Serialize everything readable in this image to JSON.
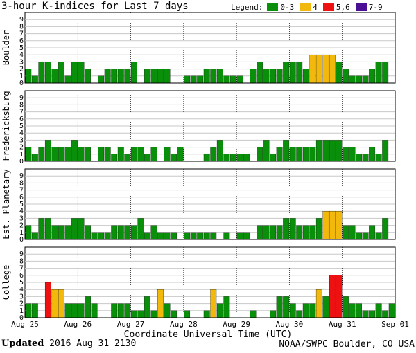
{
  "title": "3-hour K-indices for Last 7 days",
  "legend": {
    "label": "Legend:",
    "items": [
      {
        "label": "0-3",
        "color": "#0a8f0a"
      },
      {
        "label": "4",
        "color": "#f2b80b"
      },
      {
        "label": "5,6",
        "color": "#ee1111"
      },
      {
        "label": "7-9",
        "color": "#4b0f96"
      }
    ]
  },
  "footer": {
    "updated_label": "Updated",
    "updated_value": "2016 Aug 31 2130",
    "source": "NOAA/SWPC Boulder, CO USA"
  },
  "chart_data": {
    "type": "bar",
    "xlabel": "Coordinate Universal Time (UTC)",
    "x_tick_labels": [
      "Aug 25",
      "Aug 26",
      "Aug 27",
      "Aug 28",
      "Aug 29",
      "Aug 30",
      "Aug 31",
      "Sep 01"
    ],
    "ylim": [
      0,
      9
    ],
    "y_ticks": [
      0,
      1,
      2,
      3,
      4,
      5,
      6,
      7,
      8,
      9
    ],
    "series": [
      {
        "name": "Boulder",
        "values": [
          2,
          1,
          3,
          3,
          2,
          3,
          1,
          3,
          3,
          2,
          0,
          1,
          2,
          2,
          2,
          2,
          3,
          0,
          2,
          2,
          2,
          2,
          0,
          0,
          1,
          1,
          1,
          2,
          2,
          2,
          1,
          1,
          1,
          0,
          2,
          3,
          2,
          2,
          2,
          3,
          3,
          3,
          2,
          4,
          4,
          4,
          4,
          3,
          2,
          1,
          1,
          1,
          2,
          3,
          3,
          0
        ]
      },
      {
        "name": "Fredericksburg",
        "values": [
          2,
          1,
          2,
          3,
          2,
          2,
          2,
          3,
          2,
          2,
          0,
          2,
          2,
          1,
          2,
          1,
          2,
          2,
          1,
          2,
          0,
          2,
          1,
          2,
          0,
          0,
          0,
          1,
          2,
          3,
          1,
          1,
          1,
          1,
          0,
          2,
          3,
          1,
          2,
          3,
          2,
          2,
          2,
          2,
          3,
          3,
          3,
          3,
          2,
          2,
          1,
          1,
          2,
          1,
          3,
          0
        ]
      },
      {
        "name": "Est. Planetary",
        "values": [
          2,
          1,
          3,
          3,
          2,
          2,
          2,
          3,
          3,
          2,
          1,
          1,
          1,
          2,
          2,
          2,
          2,
          3,
          1,
          2,
          1,
          1,
          1,
          0,
          1,
          1,
          1,
          1,
          1,
          0,
          1,
          0,
          1,
          1,
          0,
          2,
          2,
          2,
          2,
          3,
          3,
          2,
          2,
          2,
          3,
          4,
          4,
          4,
          2,
          2,
          1,
          1,
          2,
          1,
          3,
          0
        ]
      },
      {
        "name": "College",
        "values": [
          2,
          2,
          0,
          5,
          4,
          4,
          2,
          2,
          2,
          3,
          2,
          0,
          0,
          2,
          2,
          2,
          1,
          1,
          3,
          1,
          4,
          2,
          1,
          0,
          1,
          0,
          0,
          1,
          4,
          2,
          3,
          0,
          0,
          0,
          1,
          0,
          0,
          1,
          3,
          3,
          2,
          1,
          2,
          2,
          4,
          3,
          6,
          6,
          3,
          2,
          2,
          1,
          1,
          2,
          1,
          2
        ]
      }
    ]
  }
}
